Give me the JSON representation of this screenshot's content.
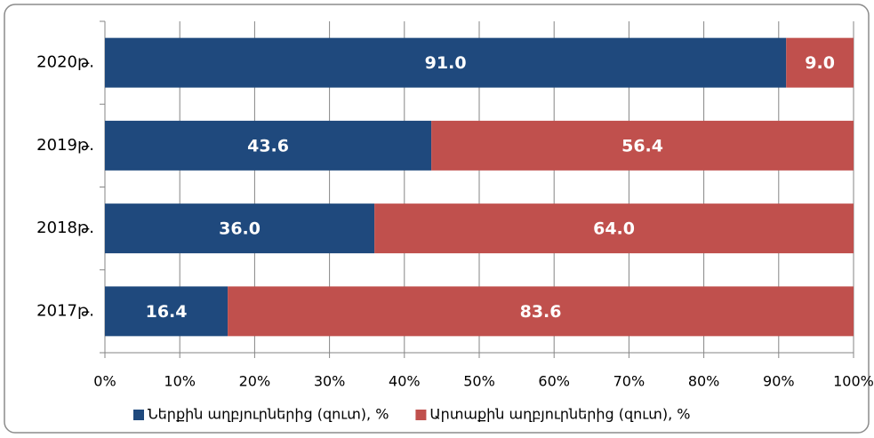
{
  "chart_data": {
    "type": "stacked_barh",
    "categories": [
      "2020թ.",
      "2019թ.",
      "2018թ.",
      "2017թ."
    ],
    "series": [
      {
        "name": "Ներքին աղբյուրներից (զուտ), %",
        "color": "#1f497d",
        "values": [
          91.0,
          43.6,
          36.0,
          16.4
        ],
        "value_labels": [
          "91.0",
          "43.6",
          "36.0",
          "16.4"
        ]
      },
      {
        "name": "Արտաքին աղբյուրներից (զուտ), %",
        "color": "#c0504d",
        "values": [
          9.0,
          56.4,
          64.0,
          83.6
        ],
        "value_labels": [
          "9.0",
          "56.4",
          "64.0",
          "83.6"
        ]
      }
    ],
    "xlim": [
      0,
      100
    ],
    "xticks": [
      {
        "value": 0,
        "label": "0%"
      },
      {
        "value": 10,
        "label": "10%"
      },
      {
        "value": 20,
        "label": "20%"
      },
      {
        "value": 30,
        "label": "30%"
      },
      {
        "value": 40,
        "label": "40%"
      },
      {
        "value": 50,
        "label": "50%"
      },
      {
        "value": 60,
        "label": "60%"
      },
      {
        "value": 70,
        "label": "70%"
      },
      {
        "value": 80,
        "label": "80%"
      },
      {
        "value": 90,
        "label": "90%"
      },
      {
        "value": 100,
        "label": "100%"
      }
    ],
    "grid": true,
    "legend": "bottom"
  }
}
